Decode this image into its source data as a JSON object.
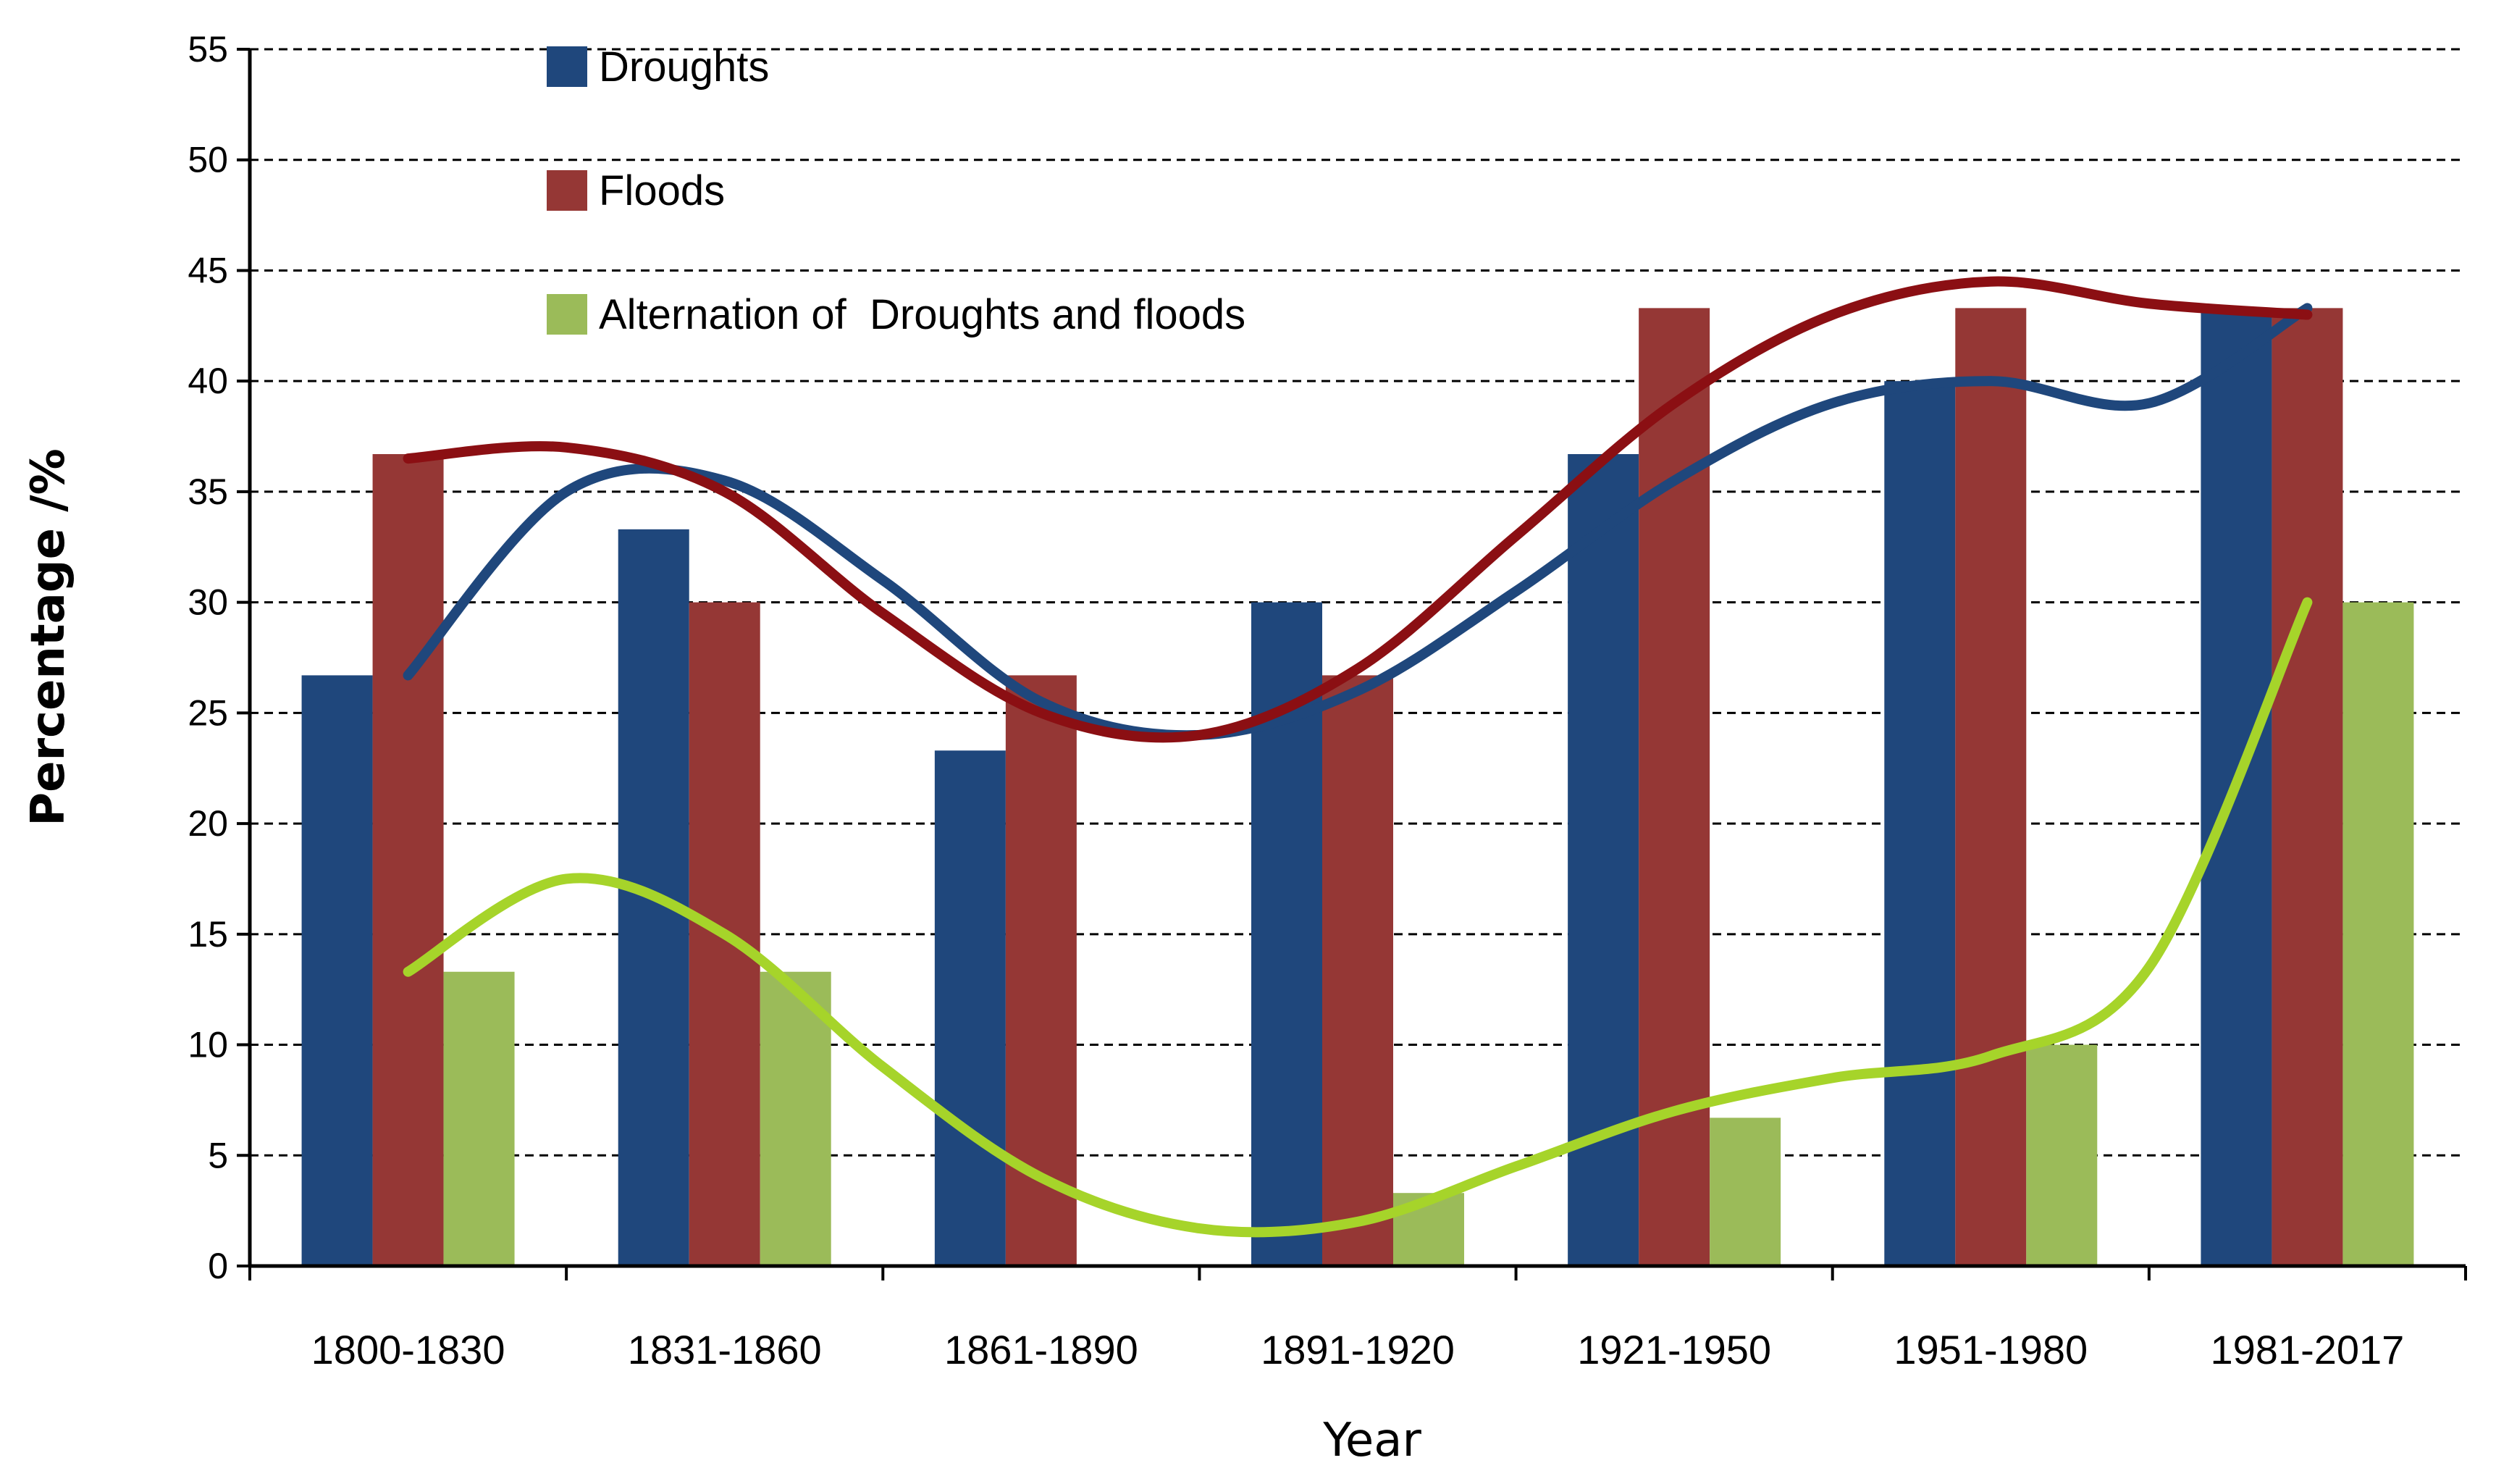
{
  "chart_data": {
    "type": "bar",
    "xlabel": "Year",
    "ylabel": "Percentage /%",
    "ylim": [
      0,
      55
    ],
    "ytick_step": 5,
    "grid": true,
    "grid_style": "dashed",
    "legend_position": "top-left",
    "categories": [
      "1800-1830",
      "1831-1860",
      "1861-1890",
      "1891-1920",
      "1921-1950",
      "1951-1980",
      "1981-2017"
    ],
    "series": [
      {
        "name": "Droughts",
        "color": "#1f477c",
        "curve_color": "#1f477c",
        "values": [
          26.7,
          33.3,
          23.3,
          30.0,
          36.7,
          40.0,
          43.3
        ]
      },
      {
        "name": "Floods",
        "color": "#953735",
        "curve_color": "#8b0f13",
        "values": [
          36.7,
          30.0,
          26.7,
          26.7,
          43.3,
          43.3,
          43.3
        ]
      },
      {
        "name": "Alternation of  Droughts and floods",
        "color": "#9bbb59",
        "curve_color": "#a6d42a",
        "values": [
          13.3,
          13.3,
          0.0,
          3.3,
          6.7,
          10.0,
          30.0
        ]
      }
    ],
    "trend_curves": [
      {
        "series": "Droughts",
        "x": [
          0,
          0.5,
          1,
          1.5,
          2,
          2.5,
          3,
          3.5,
          4,
          4.5,
          5,
          5.5,
          6
        ],
        "y": [
          26.7,
          35.0,
          35.5,
          31.0,
          25.5,
          24.0,
          26.0,
          30.5,
          35.5,
          39.0,
          40.0,
          39.0,
          43.3
        ]
      },
      {
        "series": "Floods",
        "x": [
          0,
          0.5,
          1,
          1.5,
          2,
          2.5,
          3,
          3.5,
          4,
          4.5,
          5,
          5.5,
          6
        ],
        "y": [
          36.5,
          37.0,
          35.0,
          29.5,
          25.0,
          24.0,
          27.0,
          33.0,
          39.0,
          43.0,
          44.5,
          43.5,
          43.0
        ]
      },
      {
        "series": "Alternation of  Droughts and floods",
        "x": [
          0,
          0.5,
          1,
          1.5,
          2,
          2.5,
          3,
          3.5,
          4,
          4.5,
          5,
          5.5,
          6
        ],
        "y": [
          13.3,
          17.5,
          15.0,
          9.0,
          4.0,
          1.7,
          2.0,
          4.5,
          7.0,
          8.5,
          9.5,
          13.5,
          30.0
        ]
      }
    ]
  }
}
